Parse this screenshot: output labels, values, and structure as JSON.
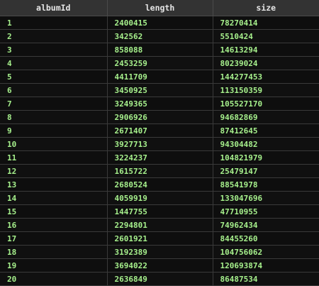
{
  "table": {
    "columns": [
      "albumId",
      "length",
      "size"
    ],
    "rows": [
      [
        "1",
        "2400415",
        "78270414"
      ],
      [
        "2",
        "342562",
        "5510424"
      ],
      [
        "3",
        "858088",
        "14613294"
      ],
      [
        "4",
        "2453259",
        "80239024"
      ],
      [
        "5",
        "4411709",
        "144277453"
      ],
      [
        "6",
        "3450925",
        "113150359"
      ],
      [
        "7",
        "3249365",
        "105527170"
      ],
      [
        "8",
        "2906926",
        "94682869"
      ],
      [
        "9",
        "2671407",
        "87412645"
      ],
      [
        "10",
        "3927713",
        "94304482"
      ],
      [
        "11",
        "3224237",
        "104821979"
      ],
      [
        "12",
        "1615722",
        "25479147"
      ],
      [
        "13",
        "2680524",
        "88541978"
      ],
      [
        "14",
        "4059919",
        "133047696"
      ],
      [
        "15",
        "1447755",
        "47710955"
      ],
      [
        "16",
        "2294801",
        "74962434"
      ],
      [
        "17",
        "2601921",
        "84455260"
      ],
      [
        "18",
        "3192389",
        "104756062"
      ],
      [
        "19",
        "3694022",
        "120693874"
      ],
      [
        "20",
        "2636849",
        "86487534"
      ]
    ]
  },
  "colors": {
    "background": "#0c0c0c",
    "header_bg": "#333333",
    "header_text": "#e6e6e6",
    "cell_text": "#a6f08c",
    "grid_line": "#3a3a3a"
  }
}
